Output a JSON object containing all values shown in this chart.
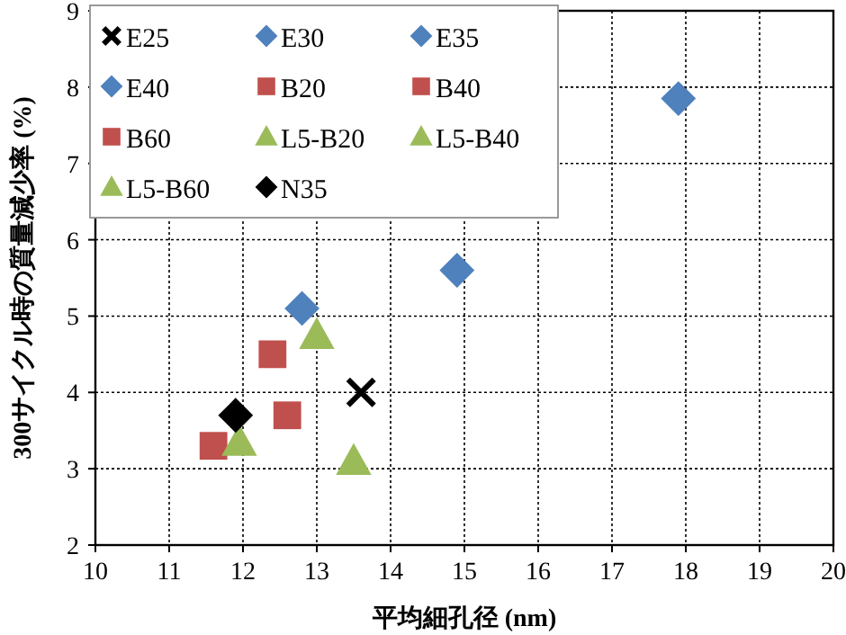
{
  "chart_data": {
    "type": "scatter",
    "xlabel": "平均細孔径 (nm)",
    "ylabel": "300サイクル時の質量減少率 (%)",
    "xlim": [
      10,
      20
    ],
    "xticks": [
      10,
      11,
      12,
      13,
      14,
      15,
      16,
      17,
      18,
      19,
      20
    ],
    "ylim": [
      2,
      9
    ],
    "yticks": [
      2,
      3,
      4,
      5,
      6,
      7,
      8,
      9
    ],
    "grid": true,
    "legend": "top left",
    "series": [
      {
        "name": "E25",
        "color": "#000000",
        "marker": "cross",
        "x": [
          13.6
        ],
        "values": [
          4.0
        ]
      },
      {
        "name": "E30",
        "color": "#4f81bd",
        "marker": "diamond",
        "x": [
          12.8
        ],
        "values": [
          5.1
        ]
      },
      {
        "name": "E35",
        "color": "#4f81bd",
        "marker": "diamond",
        "x": [
          14.9
        ],
        "values": [
          5.6
        ]
      },
      {
        "name": "E40",
        "color": "#4f81bd",
        "marker": "diamond",
        "x": [
          17.9
        ],
        "values": [
          7.85
        ]
      },
      {
        "name": "B20",
        "color": "#c0504d",
        "marker": "square",
        "x": [
          12.4
        ],
        "values": [
          4.5
        ]
      },
      {
        "name": "B40",
        "color": "#c0504d",
        "marker": "square",
        "x": [
          12.6
        ],
        "values": [
          3.7
        ]
      },
      {
        "name": "B60",
        "color": "#c0504d",
        "marker": "square",
        "x": [
          11.6
        ],
        "values": [
          3.3
        ]
      },
      {
        "name": "L5-B20",
        "color": "#9bbb59",
        "marker": "triangle",
        "x": [
          13.0
        ],
        "values": [
          4.75
        ]
      },
      {
        "name": "L5-B40",
        "color": "#9bbb59",
        "marker": "triangle",
        "x": [
          11.95
        ],
        "values": [
          3.35
        ]
      },
      {
        "name": "L5-B60",
        "color": "#9bbb59",
        "marker": "triangle",
        "x": [
          13.5
        ],
        "values": [
          3.1
        ]
      },
      {
        "name": "N35",
        "color": "#000000",
        "marker": "diamond",
        "x": [
          11.9
        ],
        "values": [
          3.7
        ]
      }
    ]
  }
}
